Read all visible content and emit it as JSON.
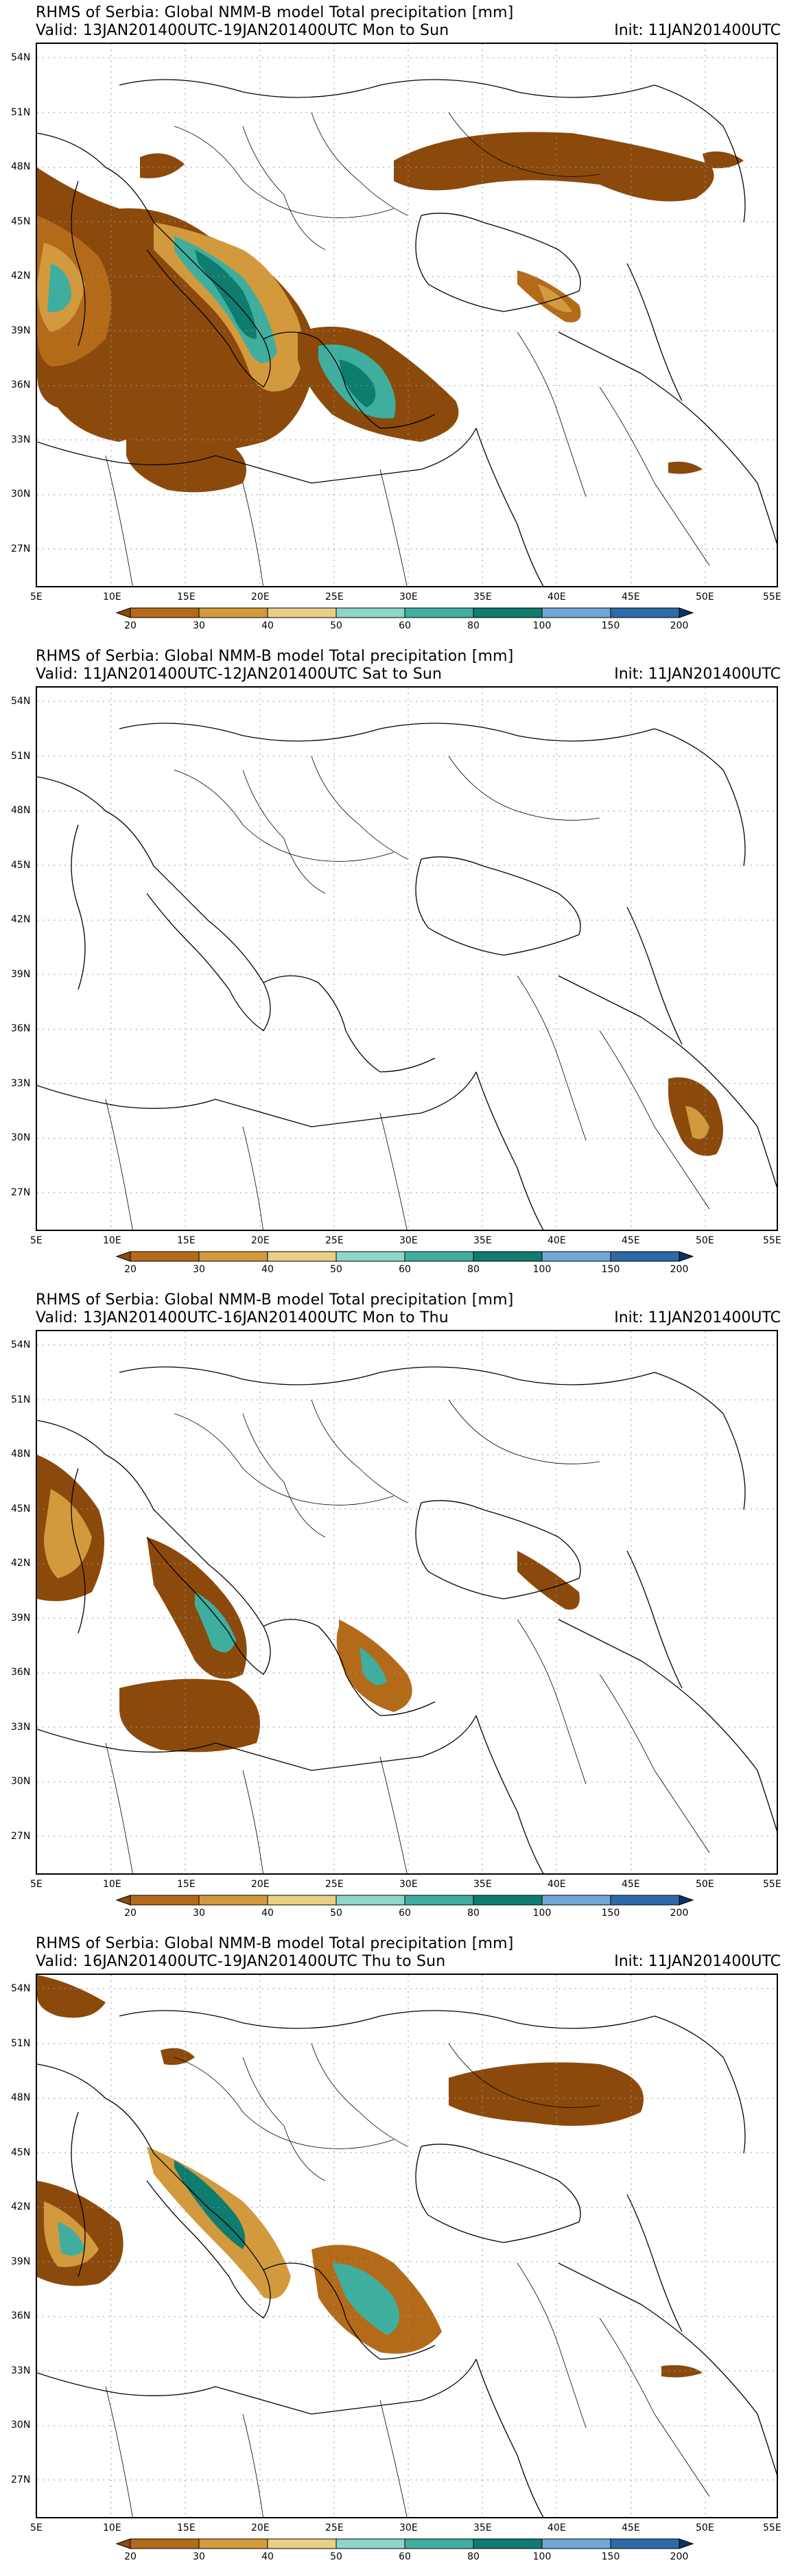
{
  "map": {
    "lon_ticks": [
      "5E",
      "10E",
      "15E",
      "20E",
      "25E",
      "30E",
      "35E",
      "40E",
      "45E",
      "50E",
      "55E"
    ],
    "lat_ticks": [
      "54N",
      "51N",
      "48N",
      "45N",
      "42N",
      "39N",
      "36N",
      "33N",
      "30N",
      "27N"
    ],
    "extent": {
      "lon": [
        5,
        55
      ],
      "lat": [
        25,
        55
      ]
    }
  },
  "legend": {
    "levels": [
      "20",
      "30",
      "40",
      "50",
      "60",
      "80",
      "100",
      "150",
      "200"
    ],
    "colors": [
      "#8b4a0c",
      "#b36b1a",
      "#d29a3c",
      "#e9cf86",
      "#8ed6c8",
      "#3fae9f",
      "#0e7c6e",
      "#6fa8d6",
      "#2f6aa8",
      "#0d3366"
    ]
  },
  "panels": [
    {
      "title": "RHMS of Serbia: Global NMM-B model Total precipitation [mm]",
      "valid": "Valid: 13JAN201400UTC-19JAN201400UTC Mon to Sun",
      "init": "Init: 11JAN201400UTC"
    },
    {
      "title": "RHMS of Serbia: Global NMM-B model Total precipitation [mm]",
      "valid": "Valid: 11JAN201400UTC-12JAN201400UTC Sat to Sun",
      "init": "Init: 11JAN201400UTC"
    },
    {
      "title": "RHMS of Serbia: Global NMM-B model Total precipitation [mm]",
      "valid": "Valid: 13JAN201400UTC-16JAN201400UTC Mon to Thu",
      "init": "Init: 11JAN201400UTC"
    },
    {
      "title": "RHMS of Serbia: Global NMM-B model Total precipitation [mm]",
      "valid": "Valid: 16JAN201400UTC-19JAN201400UTC Thu to Sun",
      "init": "Init: 11JAN201400UTC"
    }
  ]
}
